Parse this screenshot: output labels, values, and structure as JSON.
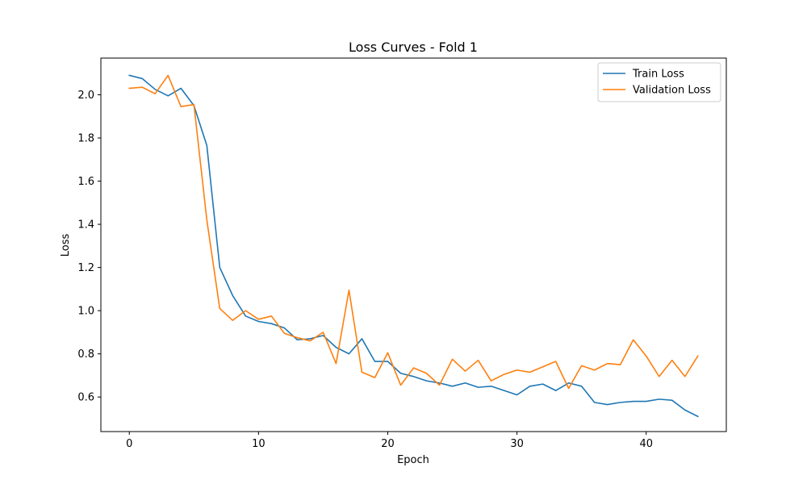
{
  "chart_data": {
    "type": "line",
    "title": "Loss Curves - Fold 1",
    "xlabel": "Epoch",
    "ylabel": "Loss",
    "xlim": [
      -2.2,
      46.2
    ],
    "ylim": [
      0.44,
      2.17
    ],
    "xticks": [
      0,
      10,
      20,
      30,
      40
    ],
    "yticks": [
      0.6,
      0.8,
      1.0,
      1.2,
      1.4,
      1.6,
      1.8,
      2.0
    ],
    "xtick_labels": [
      "0",
      "10",
      "20",
      "30",
      "40"
    ],
    "ytick_labels": [
      "0.6",
      "0.8",
      "1.0",
      "1.2",
      "1.4",
      "1.6",
      "1.8",
      "2.0"
    ],
    "grid": false,
    "legend_position": "top-right",
    "x": [
      0,
      1,
      2,
      3,
      4,
      5,
      6,
      7,
      8,
      9,
      10,
      11,
      12,
      13,
      14,
      15,
      16,
      17,
      18,
      19,
      20,
      21,
      22,
      23,
      24,
      25,
      26,
      27,
      28,
      29,
      30,
      31,
      32,
      33,
      34,
      35,
      36,
      37,
      38,
      39,
      40,
      41,
      42,
      43,
      44
    ],
    "series": [
      {
        "name": "Train Loss",
        "color": "#1f77b4",
        "values": [
          2.09,
          2.075,
          2.025,
          1.995,
          2.03,
          1.95,
          1.765,
          1.2,
          1.07,
          0.975,
          0.95,
          0.94,
          0.92,
          0.865,
          0.87,
          0.885,
          0.83,
          0.8,
          0.87,
          0.765,
          0.765,
          0.71,
          0.695,
          0.675,
          0.665,
          0.65,
          0.665,
          0.645,
          0.65,
          0.63,
          0.61,
          0.65,
          0.66,
          0.63,
          0.665,
          0.65,
          0.575,
          0.565,
          0.575,
          0.58,
          0.58,
          0.59,
          0.585,
          0.54,
          0.51
        ]
      },
      {
        "name": "Validation Loss",
        "color": "#ff7f0e",
        "values": [
          2.03,
          2.035,
          2.005,
          2.09,
          1.945,
          1.955,
          1.42,
          1.01,
          0.955,
          1.0,
          0.96,
          0.975,
          0.895,
          0.875,
          0.86,
          0.9,
          0.755,
          1.095,
          0.715,
          0.69,
          0.805,
          0.655,
          0.735,
          0.71,
          0.655,
          0.775,
          0.72,
          0.77,
          0.675,
          0.705,
          0.725,
          0.715,
          0.74,
          0.765,
          0.64,
          0.745,
          0.725,
          0.755,
          0.75,
          0.865,
          0.79,
          0.695,
          0.77,
          0.695,
          0.79
        ]
      }
    ]
  }
}
